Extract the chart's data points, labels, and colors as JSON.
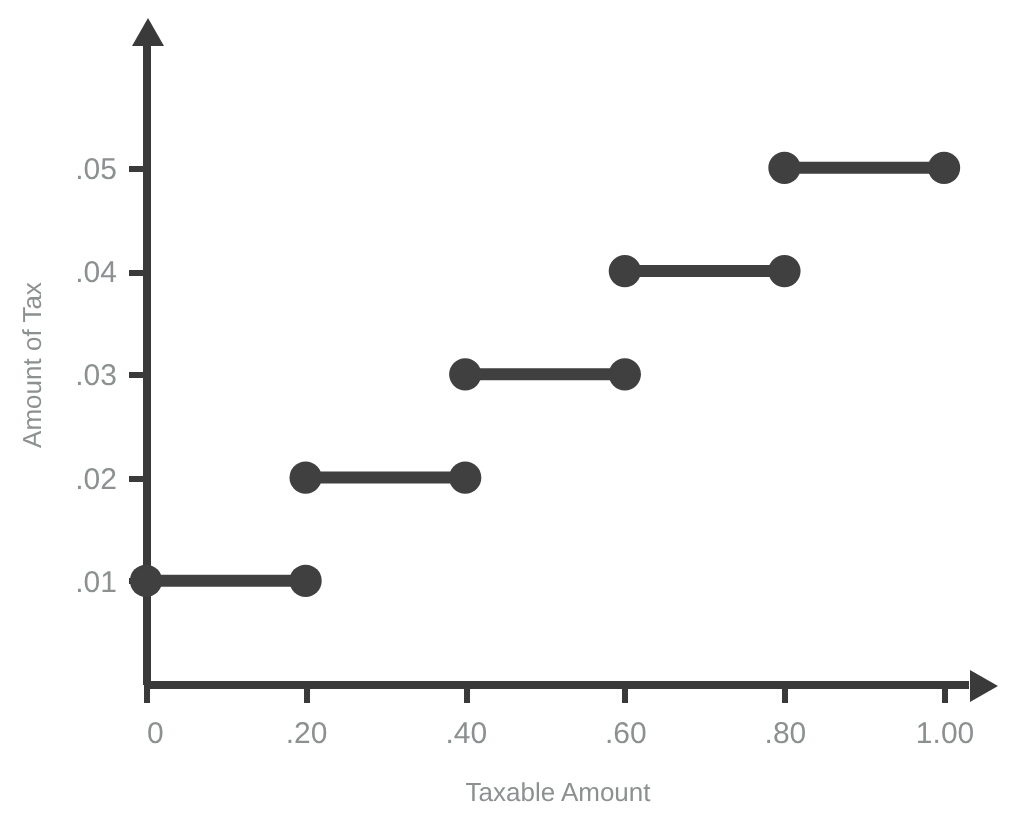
{
  "chart_data": {
    "type": "line",
    "xlabel": "Taxable Amount",
    "ylabel": "Amount of Tax",
    "xlim": [
      0,
      1.03
    ],
    "ylim": [
      0,
      0.062
    ],
    "xticks": [
      0,
      {
        "value": 0.2,
        "label": ".20"
      },
      {
        "value": 0.4,
        "label": ".40"
      },
      {
        "value": 0.6,
        "label": ".60"
      },
      {
        "value": 0.8,
        "label": ".80"
      },
      {
        "value": 1.0,
        "label": "1.00"
      }
    ],
    "yticks": [
      {
        "value": 0.01,
        "label": ".01"
      },
      {
        "value": 0.02,
        "label": ".02"
      },
      {
        "value": 0.03,
        "label": ".03"
      },
      {
        "value": 0.04,
        "label": ".04"
      },
      {
        "value": 0.05,
        "label": ".05"
      }
    ],
    "grid": false,
    "legend": false,
    "marker": "circle",
    "line_style": "solid",
    "series": [
      {
        "x": [
          0,
          0.2
        ],
        "values": [
          0.01,
          0.01
        ],
        "color": "#404040"
      },
      {
        "x": [
          0.2,
          0.4
        ],
        "values": [
          0.02,
          0.02
        ],
        "color": "#404040"
      },
      {
        "x": [
          0.4,
          0.6
        ],
        "values": [
          0.03,
          0.03
        ],
        "color": "#404040"
      },
      {
        "x": [
          0.6,
          0.8
        ],
        "values": [
          0.04,
          0.04
        ],
        "color": "#404040"
      },
      {
        "x": [
          0.8,
          1.0
        ],
        "values": [
          0.05,
          0.05
        ],
        "color": "#404040"
      }
    ]
  }
}
